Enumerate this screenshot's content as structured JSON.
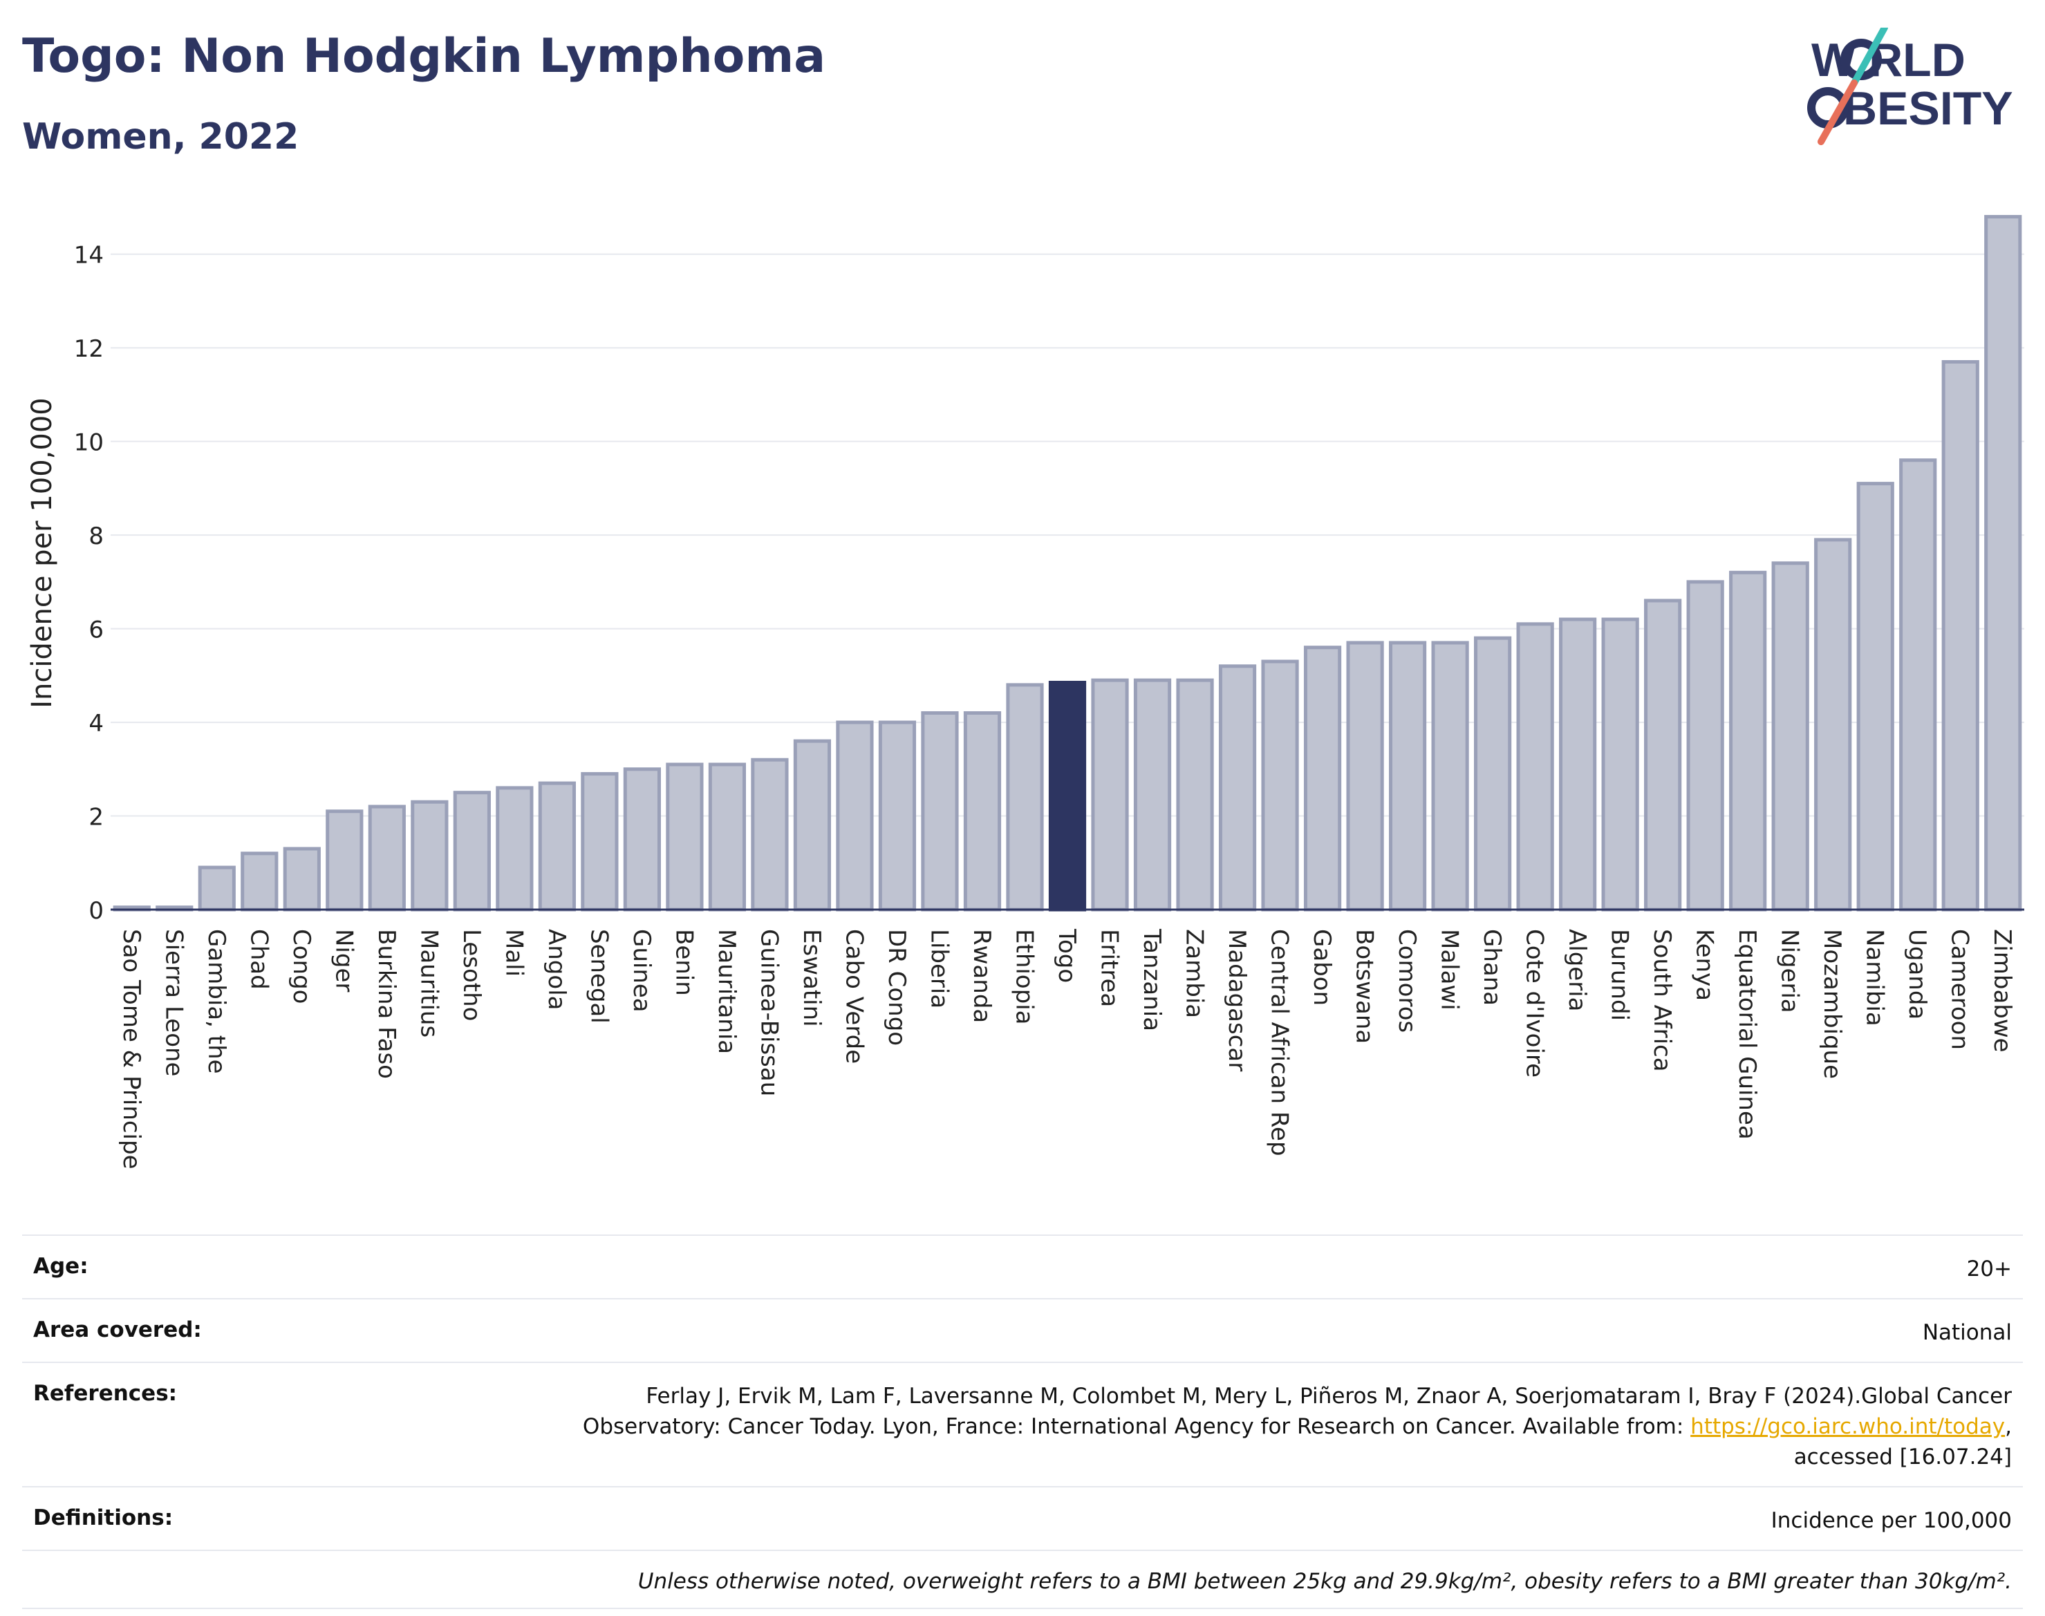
{
  "header": {
    "title": "Togo: Non Hodgkin Lymphoma",
    "subtitle": "Women, 2022"
  },
  "logo": {
    "line1": "W RLD",
    "line2": "BESITY",
    "icon": "world-obesity-logo",
    "colors": {
      "text": "#2d3561",
      "slash_teal": "#3bbfb6",
      "slash_red": "#e8705a"
    }
  },
  "colors": {
    "bar_default": "#bfc3d1",
    "bar_stroke": "#9aa0b8",
    "bar_highlight": "#2d3561",
    "grid": "#e6e8ee"
  },
  "chart_data": {
    "type": "bar",
    "title": "Togo: Non Hodgkin Lymphoma",
    "subtitle": "Women, 2022",
    "xlabel": "",
    "ylabel": "Incidence per 100,000",
    "ylim": [
      0,
      15
    ],
    "yticks": [
      0,
      2,
      4,
      6,
      8,
      10,
      12,
      14
    ],
    "grid": true,
    "highlight": "Togo",
    "categories": [
      "Sao Tome & Principe",
      "Sierra Leone",
      "Gambia, the",
      "Chad",
      "Congo",
      "Niger",
      "Burkina Faso",
      "Mauritius",
      "Lesotho",
      "Mali",
      "Angola",
      "Senegal",
      "Guinea",
      "Benin",
      "Mauritania",
      "Guinea-Bissau",
      "Eswatini",
      "Cabo Verde",
      "DR Congo",
      "Liberia",
      "Rwanda",
      "Ethiopia",
      "Togo",
      "Eritrea",
      "Tanzania",
      "Zambia",
      "Madagascar",
      "Central African Rep",
      "Gabon",
      "Botswana",
      "Comoros",
      "Malawi",
      "Ghana",
      "Cote d'Ivoire",
      "Algeria",
      "Burundi",
      "South Africa",
      "Kenya",
      "Equatorial Guinea",
      "Nigeria",
      "Mozambique",
      "Namibia",
      "Uganda",
      "Cameroon",
      "Zimbabwe"
    ],
    "values": [
      0.05,
      0.05,
      0.9,
      1.2,
      1.3,
      2.1,
      2.2,
      2.3,
      2.5,
      2.6,
      2.7,
      2.9,
      3.0,
      3.1,
      3.1,
      3.2,
      3.6,
      4.0,
      4.0,
      4.2,
      4.2,
      4.8,
      4.85,
      4.9,
      4.9,
      4.9,
      5.2,
      5.3,
      5.6,
      5.7,
      5.7,
      5.7,
      5.8,
      6.1,
      6.2,
      6.2,
      6.6,
      7.0,
      7.2,
      7.4,
      7.9,
      9.1,
      9.6,
      11.7,
      14.8
    ]
  },
  "meta": {
    "age": {
      "label": "Age:",
      "value": "20+"
    },
    "area": {
      "label": "Area covered:",
      "value": "National"
    },
    "references": {
      "label": "References:",
      "line1": "Ferlay J, Ervik M, Lam F, Laversanne M, Colombet M, Mery L, Piñeros M, Znaor A, Soerjomataram I, Bray F (2024).Global Cancer",
      "line2_pre": "Observatory: Cancer Today. Lyon, France: International Agency for Research on Cancer. Available from: ",
      "link": "https://gco.iarc.who.int/today",
      "line2_post": ",",
      "line3": "accessed [16.07.24]"
    },
    "definitions": {
      "label": "Definitions:",
      "value": "Incidence per 100,000"
    },
    "note": "Unless otherwise noted, overweight refers to a BMI between 25kg and 29.9kg/m², obesity refers to a BMI greater than 30kg/m²."
  }
}
